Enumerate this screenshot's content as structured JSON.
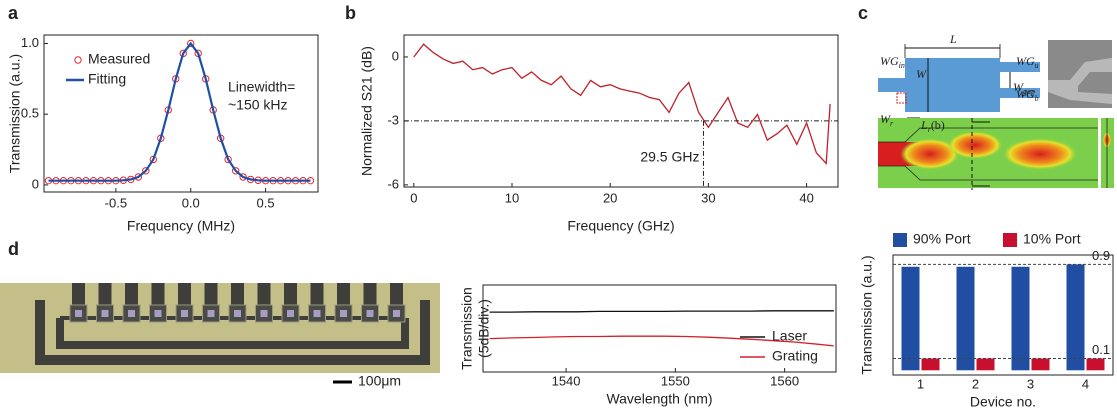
{
  "panel_labels": [
    "a",
    "b",
    "c",
    "d"
  ],
  "schematic": {
    "labels": [
      {
        "text": "WG",
        "sub": "in"
      },
      {
        "text": "L"
      },
      {
        "text": "W"
      },
      {
        "text": "W",
        "sub": "gap"
      },
      {
        "text": "WG",
        "sub": "u"
      },
      {
        "text": "WG",
        "sub": "b"
      },
      {
        "text": "W",
        "sub": "r"
      },
      {
        "text": "L",
        "sub": "r",
        "suffix": "(b)"
      }
    ]
  },
  "micrograph": {
    "scale_label": "100μm"
  },
  "chart_data": [
    {
      "type": "line",
      "xlabel": "Frequency (MHz)",
      "ylabel": "Transmission (a.u.)",
      "annotations": [
        "Linewidth=",
        "~150 kHz"
      ],
      "x": [
        -0.95,
        -0.9,
        -0.85,
        -0.8,
        -0.75,
        -0.7,
        -0.65,
        -0.6,
        -0.55,
        -0.5,
        -0.45,
        -0.4,
        -0.35,
        -0.3,
        -0.25,
        -0.2,
        -0.15,
        -0.1,
        -0.05,
        0,
        0.05,
        0.1,
        0.15,
        0.2,
        0.25,
        0.3,
        0.35,
        0.4,
        0.45,
        0.5,
        0.55,
        0.6,
        0.65,
        0.7,
        0.75,
        0.8
      ],
      "series": [
        {
          "name": "Measured",
          "color": "#e8262b",
          "mode": "markers",
          "values": [
            0.03,
            0.03,
            0.03,
            0.03,
            0.03,
            0.03,
            0.03,
            0.03,
            0.03,
            0.03,
            0.033,
            0.039,
            0.056,
            0.1,
            0.18,
            0.33,
            0.53,
            0.75,
            0.93,
            1.0,
            0.93,
            0.75,
            0.53,
            0.33,
            0.18,
            0.1,
            0.056,
            0.039,
            0.033,
            0.03,
            0.03,
            0.03,
            0.03,
            0.03,
            0.03,
            0.03
          ]
        },
        {
          "name": "Fitting",
          "color": "#1f4fa8",
          "mode": "line",
          "values": [
            0.03,
            0.03,
            0.03,
            0.03,
            0.03,
            0.03,
            0.03,
            0.03,
            0.03,
            0.03,
            0.033,
            0.039,
            0.056,
            0.1,
            0.18,
            0.33,
            0.53,
            0.75,
            0.93,
            1.0,
            0.93,
            0.75,
            0.53,
            0.33,
            0.18,
            0.1,
            0.056,
            0.039,
            0.033,
            0.03,
            0.03,
            0.03,
            0.03,
            0.03,
            0.03,
            0.03
          ]
        }
      ],
      "xlim": [
        -0.98,
        0.85
      ],
      "xticks": [
        -0.5,
        {
          "value": 0,
          "label": "0.0"
        },
        0.5
      ],
      "ylim": [
        -0.05,
        1.06
      ],
      "yticks": [
        0,
        0.5,
        {
          "value": 1,
          "label": "1.0"
        }
      ]
    },
    {
      "type": "line",
      "xlabel": "Frequency (GHz)",
      "ylabel": "Normalized S21 (dB)",
      "annotations": [
        "29.5 GHz"
      ],
      "ref_y": -3,
      "ref_x": 29.5,
      "x": [
        0,
        1,
        2,
        3,
        4,
        5,
        6,
        7,
        8,
        9,
        10,
        11,
        12,
        13,
        14,
        15,
        16,
        17,
        18,
        19,
        20,
        21,
        22,
        23,
        24,
        25,
        26,
        27,
        28,
        29,
        30,
        31,
        32,
        33,
        34,
        35,
        36,
        37,
        38,
        39,
        40,
        41,
        42,
        42.4
      ],
      "series": [
        {
          "name": "S21",
          "color": "#c0202a",
          "mode": "line",
          "values": [
            0.0,
            0.6,
            0.2,
            -0.1,
            -0.3,
            -0.2,
            -0.6,
            -0.5,
            -0.8,
            -0.6,
            -0.5,
            -1.0,
            -0.7,
            -1.1,
            -1.3,
            -0.9,
            -1.5,
            -1.8,
            -1.1,
            -1.4,
            -1.3,
            -1.5,
            -1.6,
            -1.7,
            -1.9,
            -2.0,
            -2.6,
            -1.7,
            -1.2,
            -2.6,
            -3.3,
            -2.6,
            -1.9,
            -3.1,
            -3.3,
            -2.7,
            -3.9,
            -3.6,
            -3.2,
            -4.1,
            -3.1,
            -4.5,
            -5.0,
            -2.2
          ]
        }
      ],
      "xlim": [
        -1,
        43.2
      ],
      "xticks": [
        0,
        10,
        20,
        30,
        40
      ],
      "ylim": [
        -6.1,
        1.03
      ],
      "yticks": [
        0,
        -3,
        -6
      ]
    },
    {
      "type": "bar",
      "xlabel": "Device no.",
      "ylabel": "Transmission (a.u.)",
      "categories": [
        "1",
        "2",
        "3",
        "4"
      ],
      "ref_lines": [
        0.9,
        0.1
      ],
      "series": [
        {
          "name": "90% Port",
          "color": "#1f4ea3",
          "values": [
            0.88,
            0.88,
            0.88,
            0.9
          ]
        },
        {
          "name": "10% Port",
          "color": "#c8102e",
          "values": [
            0.1,
            0.1,
            0.1,
            0.1
          ]
        }
      ],
      "ylim": [
        -0.04,
        0.98
      ]
    },
    {
      "type": "line",
      "xlabel": "Wavelength (nm)",
      "ylabel": [
        "Transmission",
        "(5dB/div.)"
      ],
      "x": [
        1533,
        1535,
        1537,
        1539,
        1541,
        1543,
        1545,
        1547,
        1549,
        1551,
        1553,
        1555,
        1557,
        1559,
        1561,
        1563,
        1564.5
      ],
      "series": [
        {
          "name": "Laser",
          "color": "#111111",
          "mode": "line",
          "values": [
            -2.8,
            -2.8,
            -2.7,
            -2.7,
            -2.7,
            -2.6,
            -2.6,
            -2.6,
            -2.6,
            -2.5,
            -2.5,
            -2.5,
            -2.5,
            -2.4,
            -2.4,
            -2.4,
            -2.4
          ]
        },
        {
          "name": "Grating",
          "color": "#d4202a",
          "mode": "line",
          "values": [
            -10.4,
            -10.2,
            -10.1,
            -9.9,
            -9.8,
            -9.8,
            -9.7,
            -9.7,
            -9.7,
            -9.8,
            -10.0,
            -10.3,
            -10.6,
            -11.0,
            -11.4,
            -12.0,
            -12.5
          ]
        }
      ],
      "xlim": [
        1532.4,
        1564.7
      ],
      "xticks": [
        1540,
        1550,
        1560
      ],
      "ylim": [
        -20,
        5
      ]
    }
  ]
}
